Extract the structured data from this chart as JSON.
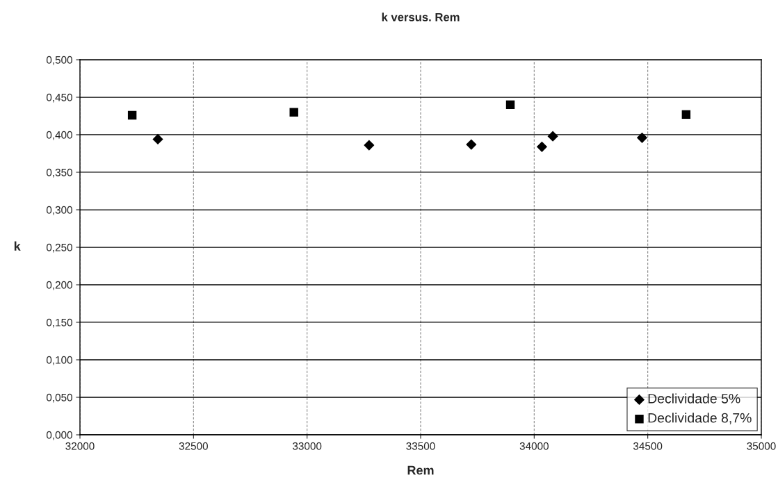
{
  "chart_data": {
    "type": "scatter",
    "title": "k versus. Rem",
    "xlabel": "Rem",
    "ylabel": "k",
    "series": [
      {
        "name": "Declividade 5%",
        "color": "#000000",
        "marker": "diamond",
        "x": [
          32343,
          33273,
          33723,
          34034,
          34082,
          34475
        ],
        "values": [
          0.394,
          0.386,
          0.387,
          0.384,
          0.398,
          0.396
        ]
      },
      {
        "name": "Declividade 8,7%",
        "color": "#000000",
        "marker": "square",
        "x": [
          32230,
          32942,
          33895,
          34669
        ],
        "values": [
          0.426,
          0.43,
          0.44,
          0.427
        ]
      }
    ],
    "xlim": [
      32000,
      35000
    ],
    "xticks": [
      32000,
      32500,
      33000,
      33500,
      34000,
      34500,
      35000
    ],
    "ylim": [
      0,
      0.5
    ],
    "yticks": [
      {
        "value": 0,
        "label": "0,000"
      },
      {
        "value": 0.05,
        "label": "0,050"
      },
      {
        "value": 0.1,
        "label": "0,100"
      },
      {
        "value": 0.15,
        "label": "0,150"
      },
      {
        "value": 0.2,
        "label": "0,200"
      },
      {
        "value": 0.25,
        "label": "0,250"
      },
      {
        "value": 0.3,
        "label": "0,300"
      },
      {
        "value": 0.35,
        "label": "0,350"
      },
      {
        "value": 0.4,
        "label": "0,400"
      },
      {
        "value": 0.45,
        "label": "0,450"
      },
      {
        "value": 0.5,
        "label": "0,500"
      }
    ],
    "grid": true,
    "legend": "bottom right"
  }
}
